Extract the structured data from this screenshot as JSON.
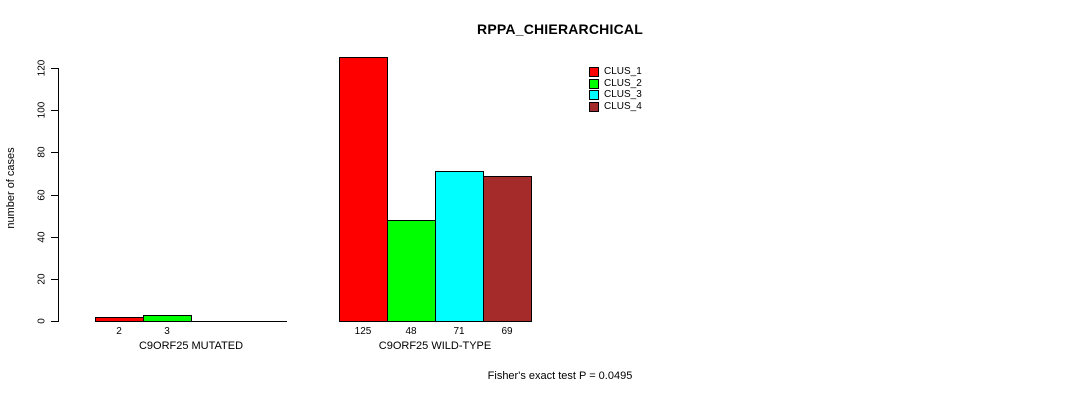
{
  "chart_data": {
    "type": "bar",
    "title": "RPPA_CHIERARCHICAL",
    "ylabel": "number of cases",
    "xlabel": "",
    "yticks": [
      0,
      20,
      40,
      60,
      80,
      100,
      120
    ],
    "ylim": [
      0,
      125
    ],
    "grid": false,
    "legend_position": "top-right",
    "categories": [
      "C9ORF25 MUTATED",
      "C9ORF25 WILD-TYPE"
    ],
    "series": [
      {
        "name": "CLUS_1",
        "color": "#ff0000",
        "values": [
          2,
          125
        ]
      },
      {
        "name": "CLUS_2",
        "color": "#00ff00",
        "values": [
          3,
          48
        ]
      },
      {
        "name": "CLUS_3",
        "color": "#00ffff",
        "values": [
          0,
          71
        ]
      },
      {
        "name": "CLUS_4",
        "color": "#a52a2a",
        "values": [
          0,
          69
        ]
      }
    ],
    "bar_value_labels": {
      "C9ORF25 MUTATED": [
        2,
        3
      ],
      "C9ORF25 WILD-TYPE": [
        125,
        48,
        71,
        69
      ]
    },
    "footnote": "Fisher's exact test P = 0.0495",
    "axis_color": "#000000",
    "background_color": "#ffffff"
  }
}
